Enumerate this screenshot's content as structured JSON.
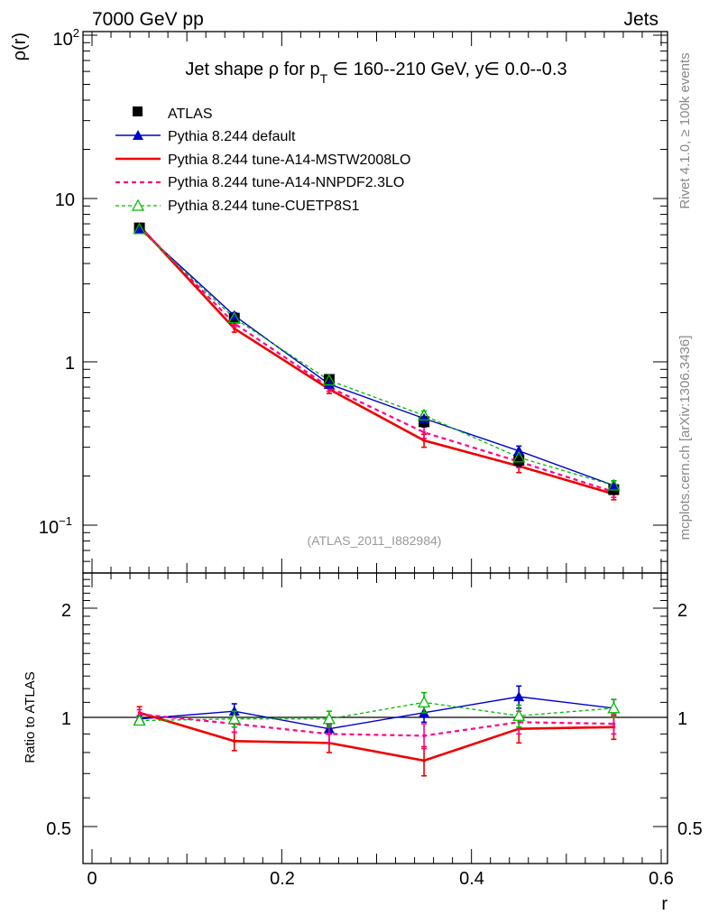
{
  "header": {
    "left": "7000 GeV pp",
    "right": "Jets"
  },
  "side_labels": {
    "top": "Rivet 4.1.0, ≥ 100k events",
    "bottom": "mcplots.cern.ch [arXiv:1306.3436]"
  },
  "colors": {
    "atlas": "#000000",
    "default": "#0000cc",
    "mstw": "#ee0000",
    "nnpdf": "#ff0088",
    "cuetp": "#00bb00"
  },
  "chart_data": [
    {
      "type": "line",
      "title": "Jet shape ρ for p_T ∈ 160--210 GeV, y∈ 0.0--0.3",
      "title_parts": {
        "a": "Jet shape ρ for p",
        "sub": "T",
        "b": " ∈ 160--210 GeV, y∈ 0.0--0.3"
      },
      "ylabel": "ρ(r)",
      "yscale": "log",
      "ylim": [
        0.055,
        115
      ],
      "xlim": [
        -0.01,
        0.6
      ],
      "ytick_labels": {
        "t100": "10",
        "t100_exp": "2",
        "t10": "10",
        "t1": "1",
        "t01": "10",
        "t01_exp": "−1"
      },
      "reference": "(ATLAS_2011_I882984)",
      "x": [
        0.05,
        0.15,
        0.25,
        0.35,
        0.45,
        0.55
      ],
      "series": [
        {
          "name": "ATLAS",
          "values": [
            6.6,
            1.85,
            0.78,
            0.43,
            0.25,
            0.165
          ],
          "err": [
            0.3,
            0.07,
            0.03,
            0.03,
            0.02,
            0.01
          ]
        },
        {
          "name": "Pythia 8.244 default",
          "values": [
            6.55,
            1.92,
            0.73,
            0.45,
            0.285,
            0.175
          ],
          "err": [
            0.2,
            0.08,
            0.03,
            0.025,
            0.02,
            0.012
          ]
        },
        {
          "name": "Pythia 8.244 tune-A14-MSTW2008LO",
          "values": [
            6.8,
            1.6,
            0.68,
            0.33,
            0.23,
            0.155
          ],
          "err": [
            0.25,
            0.08,
            0.04,
            0.03,
            0.02,
            0.012
          ]
        },
        {
          "name": "Pythia 8.244 tune-A14-NNPDF2.3LO",
          "values": [
            6.75,
            1.72,
            0.7,
            0.37,
            0.245,
            0.16
          ],
          "err": [
            0.25,
            0.08,
            0.04,
            0.03,
            0.02,
            0.012
          ]
        },
        {
          "name": "Pythia 8.244 tune-CUETP8S1",
          "values": [
            6.5,
            1.85,
            0.77,
            0.47,
            0.26,
            0.175
          ],
          "err": [
            0.2,
            0.08,
            0.04,
            0.03,
            0.02,
            0.012
          ]
        }
      ],
      "legend": [
        "ATLAS",
        "Pythia 8.244 default",
        "Pythia 8.244 tune-A14-MSTW2008LO",
        "Pythia 8.244 tune-A14-NNPDF2.3LO",
        "Pythia 8.244 tune-CUETP8S1"
      ]
    },
    {
      "type": "line",
      "ylabel": "Ratio to ATLAS",
      "xlabel": "r",
      "yscale": "log",
      "ylim": [
        0.4,
        2.5
      ],
      "xlim": [
        -0.01,
        0.6
      ],
      "yticks": [
        "0.5",
        "1",
        "2"
      ],
      "xticks": [
        "0",
        "0.2",
        "0.4",
        "0.6"
      ],
      "x": [
        0.05,
        0.15,
        0.25,
        0.35,
        0.45,
        0.55
      ],
      "series": [
        {
          "name": "Pythia 8.244 default",
          "values": [
            0.99,
            1.04,
            0.93,
            1.03,
            1.14,
            1.06
          ],
          "err": [
            0.02,
            0.05,
            0.03,
            0.06,
            0.08,
            0.06
          ]
        },
        {
          "name": "Pythia 8.244 tune-A14-MSTW2008LO",
          "values": [
            1.03,
            0.86,
            0.85,
            0.76,
            0.93,
            0.94
          ],
          "err": [
            0.04,
            0.05,
            0.05,
            0.07,
            0.08,
            0.07
          ]
        },
        {
          "name": "Pythia 8.244 tune-A14-NNPDF2.3LO",
          "values": [
            1.02,
            0.96,
            0.9,
            0.89,
            0.97,
            0.96
          ],
          "err": [
            0.03,
            0.05,
            0.05,
            0.07,
            0.07,
            0.06
          ]
        },
        {
          "name": "Pythia 8.244 tune-CUETP8S1",
          "values": [
            0.98,
            0.99,
            0.99,
            1.1,
            1.01,
            1.06
          ],
          "err": [
            0.02,
            0.05,
            0.05,
            0.07,
            0.07,
            0.06
          ]
        }
      ]
    }
  ]
}
